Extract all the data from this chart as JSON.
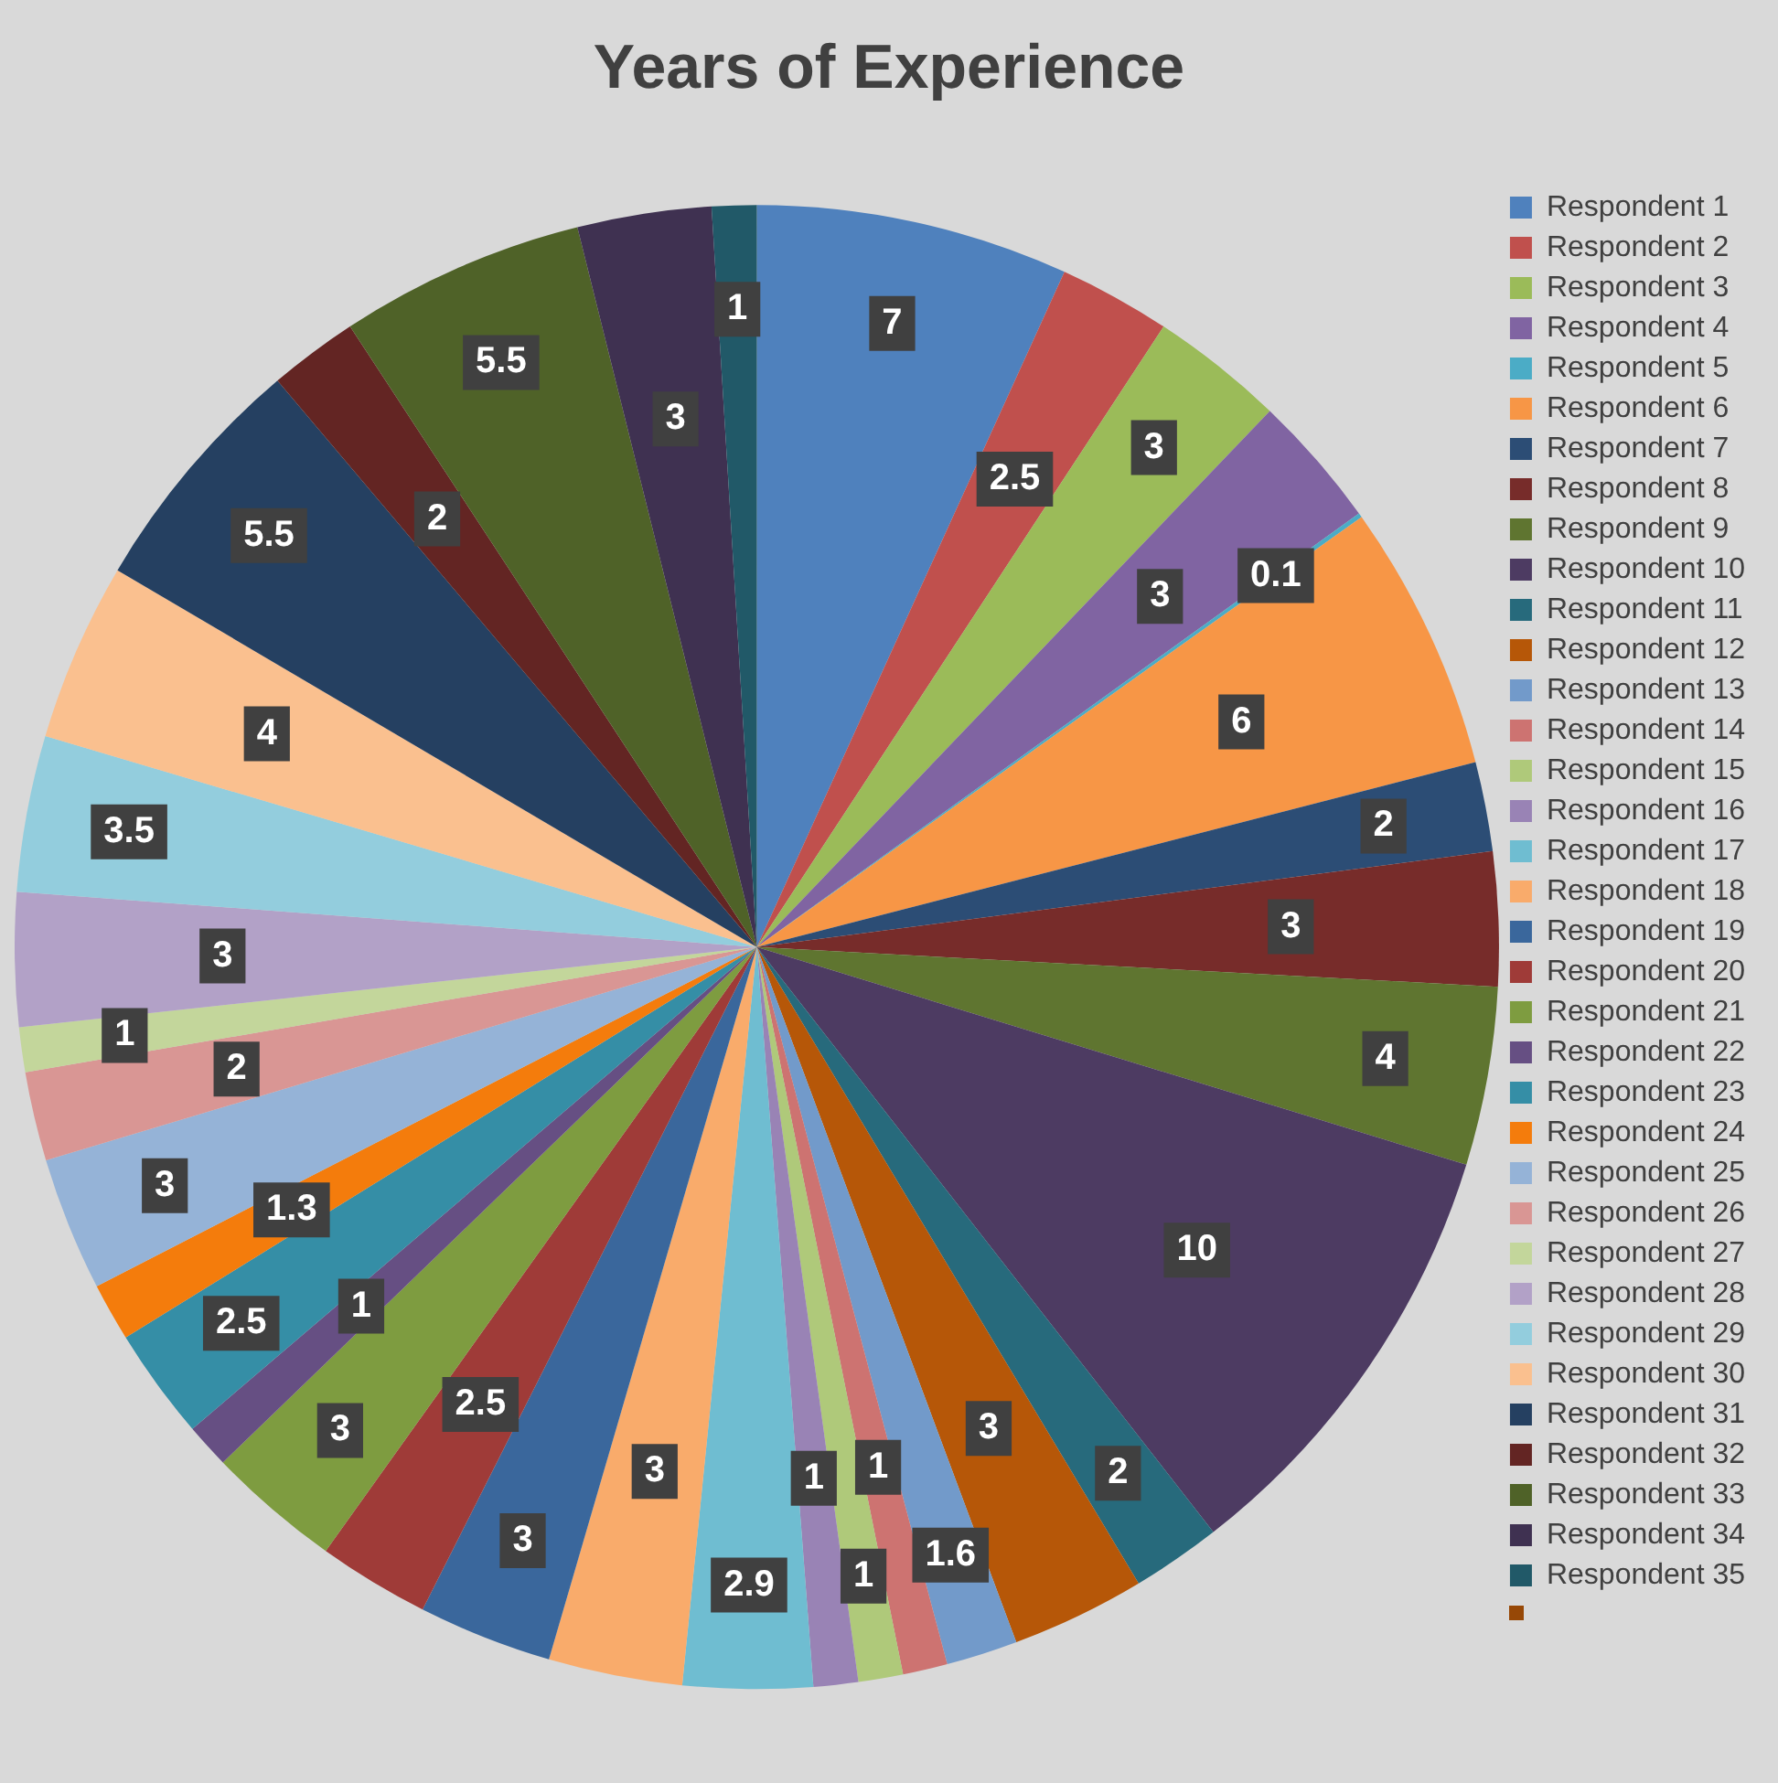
{
  "chart_data": {
    "type": "pie",
    "title": "Years of Experience",
    "categories": [
      "Respondent 1",
      "Respondent 2",
      "Respondent 3",
      "Respondent 4",
      "Respondent 5",
      "Respondent 6",
      "Respondent 7",
      "Respondent 8",
      "Respondent 9",
      "Respondent 10",
      "Respondent 11",
      "Respondent 12",
      "Respondent 13",
      "Respondent 14",
      "Respondent 15",
      "Respondent 16",
      "Respondent 17",
      "Respondent 18",
      "Respondent 19",
      "Respondent 20",
      "Respondent 21",
      "Respondent 22",
      "Respondent 23",
      "Respondent 24",
      "Respondent 25",
      "Respondent 26",
      "Respondent 27",
      "Respondent 28",
      "Respondent 29",
      "Respondent 30",
      "Respondent 31",
      "Respondent 32",
      "Respondent 33",
      "Respondent 34",
      "Respondent 35"
    ],
    "values": [
      7,
      2.5,
      3,
      3,
      0.1,
      6,
      2,
      3,
      4,
      10,
      2,
      3,
      1.6,
      1,
      1,
      1,
      2.9,
      3,
      3,
      2.5,
      3,
      1,
      2.5,
      1.3,
      3,
      2,
      1,
      3,
      3.5,
      4,
      5.5,
      2,
      5.5,
      3,
      1
    ],
    "colors": [
      "#4f81bd",
      "#c0504d",
      "#9bbb59",
      "#8064a2",
      "#4bacc6",
      "#f79646",
      "#2c4d75",
      "#772c2a",
      "#5f7530",
      "#4d3b62",
      "#276a7c",
      "#b65708",
      "#729aca",
      "#cd7371",
      "#afc97a",
      "#9983b5",
      "#6fbdd1",
      "#f9ab6b",
      "#3a679c",
      "#9f3b38",
      "#7e9c40",
      "#664f83",
      "#358ea6",
      "#f47c0c",
      "#95b3d7",
      "#d99694",
      "#c3d69b",
      "#b2a1c7",
      "#93cddd",
      "#fac08f",
      "#254061",
      "#632523",
      "#4f6228",
      "#3f3151",
      "#215968"
    ],
    "data_labels": true,
    "legend": "right"
  }
}
